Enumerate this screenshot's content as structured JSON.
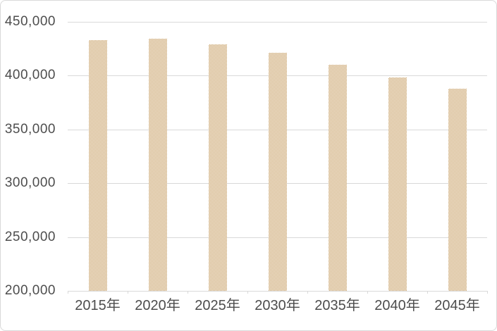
{
  "chart_data": {
    "type": "bar",
    "title": "",
    "xlabel": "",
    "ylabel": "",
    "categories": [
      "2015年",
      "2020年",
      "2025年",
      "2030年",
      "2035年",
      "2040年",
      "2045年"
    ],
    "values": [
      433000,
      434000,
      429000,
      421000,
      410000,
      398000,
      388000
    ],
    "ylim": [
      200000,
      450000
    ],
    "yticks": [
      200000,
      250000,
      300000,
      350000,
      400000,
      450000
    ],
    "ytick_labels": [
      "200,000",
      "250,000",
      "300,000",
      "350,000",
      "400,000",
      "450,000"
    ],
    "grid": true,
    "legend": false,
    "bar_pattern": "checkerboard",
    "colors": {
      "bar": "#C79E63",
      "gridline": "#D9D9D9",
      "text": "#4D4D4D",
      "frame_border": "#D9D9D9",
      "background": "#FFFFFF"
    }
  }
}
